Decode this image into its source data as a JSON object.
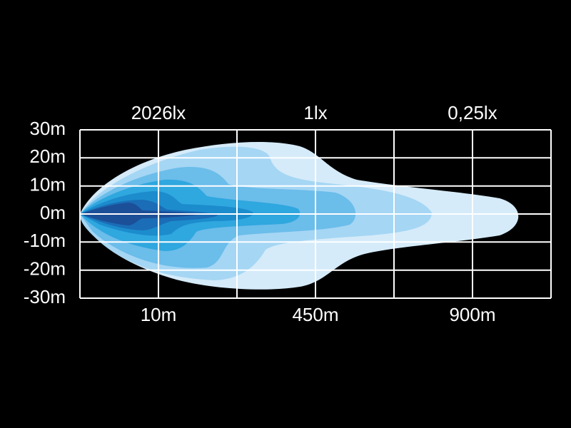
{
  "y_axis": {
    "labels": [
      "30m",
      "20m",
      "10m",
      "0m",
      "-10m",
      "-20m",
      "-30m"
    ]
  },
  "top_labels": [
    "2026lx",
    "1lx",
    "0,25lx"
  ],
  "bottom_labels": [
    "10m",
    "450m",
    "900m"
  ]
}
